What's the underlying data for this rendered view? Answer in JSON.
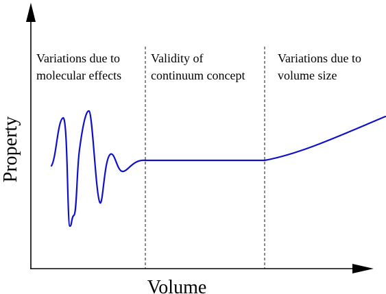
{
  "diagram": {
    "x_axis_label": "Volume",
    "y_axis_label": "Property",
    "regions": [
      {
        "line1": "Variations due to",
        "line2": "molecular effects"
      },
      {
        "line1": "Validity of",
        "line2": "continuum concept"
      },
      {
        "line1": "Variations due to",
        "line2": "volume size"
      }
    ],
    "colors": {
      "curve": "#1010c8",
      "axes": "#000000",
      "divider": "#000000"
    }
  }
}
